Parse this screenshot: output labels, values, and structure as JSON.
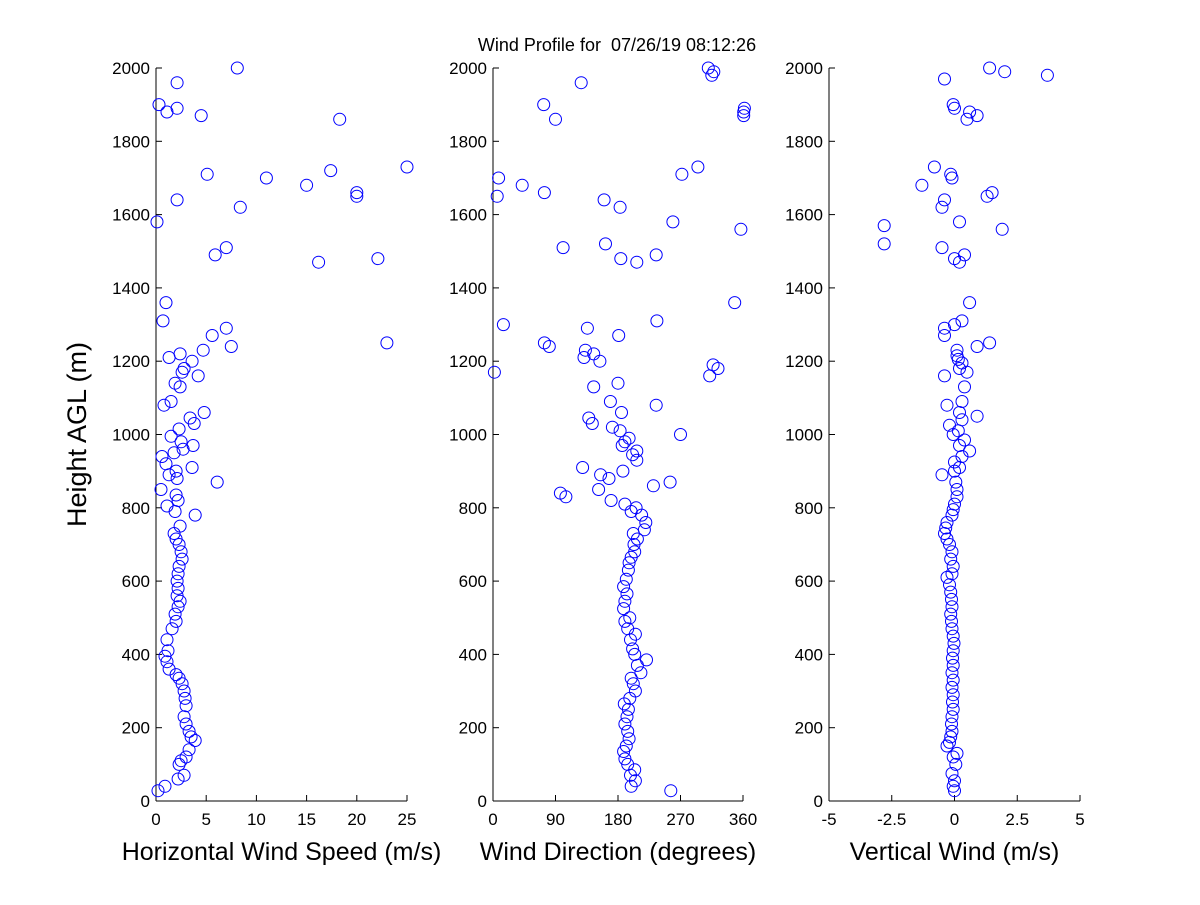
{
  "title": "Wind Profile for  07/26/19 08:12:26",
  "colors": {
    "marker": "#0000ff",
    "axis": "#000000",
    "background": "#ffffff"
  },
  "chart_data": [
    {
      "type": "scatter",
      "xlabel": "Horizontal Wind Speed (m/s)",
      "ylabel": "Height AGL (m)",
      "xlim": [
        0,
        25
      ],
      "ylim": [
        0,
        2000
      ],
      "xticks": [
        "0",
        "5",
        "10",
        "15",
        "20",
        "25"
      ],
      "yticks": [
        "0",
        "200",
        "400",
        "600",
        "800",
        "1000",
        "1200",
        "1400",
        "1600",
        "1800",
        "2000"
      ],
      "grid": false,
      "points": [
        [
          0.2,
          28
        ],
        [
          0.9,
          40
        ],
        [
          2.2,
          60
        ],
        [
          2.8,
          70
        ],
        [
          2.3,
          100
        ],
        [
          2.5,
          110
        ],
        [
          3.0,
          120
        ],
        [
          3.3,
          140
        ],
        [
          3.9,
          165
        ],
        [
          3.5,
          175
        ],
        [
          3.3,
          190
        ],
        [
          3.0,
          210
        ],
        [
          2.8,
          230
        ],
        [
          3.0,
          260
        ],
        [
          2.9,
          280
        ],
        [
          2.8,
          300
        ],
        [
          2.6,
          320
        ],
        [
          2.3,
          335
        ],
        [
          2.0,
          345
        ],
        [
          1.3,
          360
        ],
        [
          1.1,
          380
        ],
        [
          0.9,
          395
        ],
        [
          1.2,
          410
        ],
        [
          1.1,
          440
        ],
        [
          1.6,
          470
        ],
        [
          2.0,
          490
        ],
        [
          1.9,
          510
        ],
        [
          2.2,
          530
        ],
        [
          2.4,
          545
        ],
        [
          2.1,
          560
        ],
        [
          2.2,
          580
        ],
        [
          2.1,
          600
        ],
        [
          2.2,
          620
        ],
        [
          2.3,
          640
        ],
        [
          2.6,
          660
        ],
        [
          2.5,
          680
        ],
        [
          2.3,
          700
        ],
        [
          2.0,
          715
        ],
        [
          1.8,
          730
        ],
        [
          2.4,
          750
        ],
        [
          3.9,
          780
        ],
        [
          1.9,
          790
        ],
        [
          1.1,
          805
        ],
        [
          2.2,
          820
        ],
        [
          2.0,
          835
        ],
        [
          0.5,
          850
        ],
        [
          6.1,
          870
        ],
        [
          2.1,
          880
        ],
        [
          1.3,
          890
        ],
        [
          2.0,
          900
        ],
        [
          3.6,
          910
        ],
        [
          1.0,
          920
        ],
        [
          0.6,
          940
        ],
        [
          1.8,
          950
        ],
        [
          2.7,
          960
        ],
        [
          3.7,
          970
        ],
        [
          2.5,
          980
        ],
        [
          1.5,
          995
        ],
        [
          2.3,
          1015
        ],
        [
          3.8,
          1030
        ],
        [
          3.4,
          1045
        ],
        [
          4.8,
          1060
        ],
        [
          0.8,
          1080
        ],
        [
          1.5,
          1090
        ],
        [
          2.4,
          1130
        ],
        [
          1.9,
          1140
        ],
        [
          4.2,
          1160
        ],
        [
          2.6,
          1170
        ],
        [
          2.8,
          1180
        ],
        [
          3.6,
          1200
        ],
        [
          1.3,
          1210
        ],
        [
          2.4,
          1220
        ],
        [
          4.7,
          1230
        ],
        [
          7.5,
          1240
        ],
        [
          23.0,
          1250
        ],
        [
          5.6,
          1270
        ],
        [
          7.0,
          1290
        ],
        [
          0.7,
          1310
        ],
        [
          1.0,
          1360
        ],
        [
          16.2,
          1470
        ],
        [
          22.1,
          1480
        ],
        [
          5.9,
          1490
        ],
        [
          7.0,
          1510
        ],
        [
          0.1,
          1580
        ],
        [
          8.4,
          1620
        ],
        [
          2.1,
          1640
        ],
        [
          20.0,
          1650
        ],
        [
          20.0,
          1660
        ],
        [
          15.0,
          1680
        ],
        [
          11.0,
          1700
        ],
        [
          5.1,
          1710
        ],
        [
          17.4,
          1720
        ],
        [
          25.0,
          1730
        ],
        [
          18.3,
          1860
        ],
        [
          4.5,
          1870
        ],
        [
          1.1,
          1880
        ],
        [
          2.1,
          1890
        ],
        [
          0.3,
          1900
        ],
        [
          2.1,
          1960
        ],
        [
          8.1,
          2000
        ]
      ]
    },
    {
      "type": "scatter",
      "xlabel": "Wind Direction (degrees)",
      "ylabel": "",
      "xlim": [
        0,
        360
      ],
      "ylim": [
        0,
        2000
      ],
      "xticks": [
        "0",
        "90",
        "180",
        "270",
        "360"
      ],
      "yticks": [
        "0",
        "200",
        "400",
        "600",
        "800",
        "1000",
        "1200",
        "1400",
        "1600",
        "1800",
        "2000"
      ],
      "grid": false,
      "points": [
        [
          256,
          28
        ],
        [
          199,
          40
        ],
        [
          205,
          55
        ],
        [
          198,
          70
        ],
        [
          204,
          85
        ],
        [
          194,
          100
        ],
        [
          190,
          115
        ],
        [
          188,
          135
        ],
        [
          192,
          150
        ],
        [
          196,
          170
        ],
        [
          194,
          190
        ],
        [
          190,
          210
        ],
        [
          193,
          230
        ],
        [
          195,
          250
        ],
        [
          189,
          265
        ],
        [
          197,
          280
        ],
        [
          205,
          300
        ],
        [
          202,
          320
        ],
        [
          199,
          335
        ],
        [
          213,
          350
        ],
        [
          208,
          370
        ],
        [
          221,
          385
        ],
        [
          204,
          400
        ],
        [
          201,
          415
        ],
        [
          198,
          440
        ],
        [
          205,
          455
        ],
        [
          194,
          470
        ],
        [
          190,
          490
        ],
        [
          197,
          500
        ],
        [
          188,
          525
        ],
        [
          190,
          545
        ],
        [
          193,
          565
        ],
        [
          188,
          585
        ],
        [
          192,
          605
        ],
        [
          195,
          630
        ],
        [
          196,
          650
        ],
        [
          199,
          665
        ],
        [
          204,
          680
        ],
        [
          203,
          700
        ],
        [
          208,
          715
        ],
        [
          202,
          730
        ],
        [
          218,
          740
        ],
        [
          220,
          760
        ],
        [
          214,
          780
        ],
        [
          199,
          790
        ],
        [
          206,
          800
        ],
        [
          190,
          810
        ],
        [
          170,
          820
        ],
        [
          105,
          830
        ],
        [
          97,
          840
        ],
        [
          152,
          850
        ],
        [
          231,
          860
        ],
        [
          255,
          870
        ],
        [
          167,
          880
        ],
        [
          155,
          890
        ],
        [
          187,
          900
        ],
        [
          129,
          910
        ],
        [
          207,
          930
        ],
        [
          201,
          945
        ],
        [
          207,
          955
        ],
        [
          186,
          970
        ],
        [
          190,
          980
        ],
        [
          196,
          990
        ],
        [
          270,
          1000
        ],
        [
          183,
          1010
        ],
        [
          172,
          1020
        ],
        [
          143,
          1030
        ],
        [
          138,
          1045
        ],
        [
          185,
          1060
        ],
        [
          235,
          1080
        ],
        [
          169,
          1090
        ],
        [
          180,
          1140
        ],
        [
          312,
          1160
        ],
        [
          145,
          1130
        ],
        [
          2,
          1170
        ],
        [
          324,
          1180
        ],
        [
          317,
          1190
        ],
        [
          154,
          1200
        ],
        [
          131,
          1210
        ],
        [
          145,
          1220
        ],
        [
          133,
          1230
        ],
        [
          81,
          1240
        ],
        [
          74,
          1250
        ],
        [
          181,
          1270
        ],
        [
          136,
          1290
        ],
        [
          15,
          1300
        ],
        [
          236,
          1310
        ],
        [
          348,
          1360
        ],
        [
          207,
          1470
        ],
        [
          184,
          1480
        ],
        [
          235,
          1490
        ],
        [
          101,
          1510
        ],
        [
          162,
          1520
        ],
        [
          357,
          1560
        ],
        [
          259,
          1580
        ],
        [
          183,
          1620
        ],
        [
          160,
          1640
        ],
        [
          6,
          1650
        ],
        [
          74,
          1660
        ],
        [
          42,
          1680
        ],
        [
          8,
          1700
        ],
        [
          272,
          1710
        ],
        [
          295,
          1730
        ],
        [
          90,
          1860
        ],
        [
          361,
          1870
        ],
        [
          361,
          1880
        ],
        [
          362,
          1890
        ],
        [
          73,
          1900
        ],
        [
          127,
          1960
        ],
        [
          315,
          1980
        ],
        [
          318,
          1990
        ],
        [
          310,
          2000
        ]
      ]
    },
    {
      "type": "scatter",
      "xlabel": "Vertical Wind (m/s)",
      "ylabel": "",
      "xlim": [
        -5,
        5
      ],
      "ylim": [
        0,
        2000
      ],
      "xticks": [
        "-5",
        "-2.5",
        "0",
        "2.5",
        "5"
      ],
      "yticks": [
        "0",
        "200",
        "400",
        "600",
        "800",
        "1000",
        "1200",
        "1400",
        "1600",
        "1800",
        "2000"
      ],
      "grid": false,
      "points": [
        [
          0.0,
          28
        ],
        [
          -0.05,
          40
        ],
        [
          0.0,
          55
        ],
        [
          -0.1,
          75
        ],
        [
          0.05,
          100
        ],
        [
          -0.05,
          120
        ],
        [
          0.1,
          130
        ],
        [
          -0.3,
          150
        ],
        [
          -0.2,
          160
        ],
        [
          -0.15,
          175
        ],
        [
          -0.1,
          190
        ],
        [
          -0.12,
          210
        ],
        [
          -0.1,
          230
        ],
        [
          -0.05,
          250
        ],
        [
          -0.08,
          270
        ],
        [
          -0.05,
          290
        ],
        [
          -0.1,
          310
        ],
        [
          -0.05,
          330
        ],
        [
          -0.1,
          350
        ],
        [
          -0.05,
          370
        ],
        [
          -0.08,
          390
        ],
        [
          -0.05,
          410
        ],
        [
          -0.02,
          430
        ],
        [
          -0.05,
          450
        ],
        [
          -0.1,
          470
        ],
        [
          -0.12,
          490
        ],
        [
          -0.15,
          510
        ],
        [
          -0.1,
          530
        ],
        [
          -0.12,
          550
        ],
        [
          -0.15,
          570
        ],
        [
          -0.2,
          590
        ],
        [
          -0.3,
          610
        ],
        [
          -0.1,
          620
        ],
        [
          -0.05,
          640
        ],
        [
          -0.15,
          660
        ],
        [
          -0.1,
          680
        ],
        [
          -0.2,
          700
        ],
        [
          -0.3,
          715
        ],
        [
          -0.4,
          730
        ],
        [
          -0.35,
          745
        ],
        [
          -0.3,
          760
        ],
        [
          -0.1,
          780
        ],
        [
          -0.05,
          795
        ],
        [
          0.0,
          810
        ],
        [
          0.1,
          830
        ],
        [
          0.1,
          850
        ],
        [
          0.05,
          870
        ],
        [
          -0.5,
          890
        ],
        [
          0.0,
          900
        ],
        [
          0.2,
          910
        ],
        [
          0.0,
          925
        ],
        [
          0.3,
          940
        ],
        [
          0.6,
          955
        ],
        [
          0.2,
          970
        ],
        [
          0.4,
          985
        ],
        [
          -0.05,
          1000
        ],
        [
          0.15,
          1010
        ],
        [
          -0.2,
          1025
        ],
        [
          0.3,
          1040
        ],
        [
          0.9,
          1050
        ],
        [
          0.2,
          1060
        ],
        [
          -0.3,
          1080
        ],
        [
          0.3,
          1090
        ],
        [
          0.4,
          1130
        ],
        [
          -0.4,
          1160
        ],
        [
          0.5,
          1170
        ],
        [
          0.2,
          1180
        ],
        [
          0.3,
          1195
        ],
        [
          0.15,
          1205
        ],
        [
          0.1,
          1215
        ],
        [
          0.1,
          1230
        ],
        [
          0.9,
          1240
        ],
        [
          1.4,
          1250
        ],
        [
          -0.4,
          1270
        ],
        [
          -0.4,
          1290
        ],
        [
          0.0,
          1300
        ],
        [
          0.3,
          1310
        ],
        [
          0.6,
          1360
        ],
        [
          0.2,
          1470
        ],
        [
          0.0,
          1480
        ],
        [
          0.4,
          1490
        ],
        [
          -0.5,
          1510
        ],
        [
          -2.8,
          1520
        ],
        [
          1.9,
          1560
        ],
        [
          -2.8,
          1570
        ],
        [
          0.2,
          1580
        ],
        [
          -0.5,
          1620
        ],
        [
          -0.4,
          1640
        ],
        [
          1.3,
          1650
        ],
        [
          1.5,
          1660
        ],
        [
          -1.3,
          1680
        ],
        [
          -0.1,
          1700
        ],
        [
          -0.15,
          1710
        ],
        [
          -0.8,
          1730
        ],
        [
          0.5,
          1860
        ],
        [
          0.9,
          1870
        ],
        [
          0.6,
          1880
        ],
        [
          0.0,
          1890
        ],
        [
          -0.05,
          1900
        ],
        [
          -0.4,
          1970
        ],
        [
          3.7,
          1980
        ],
        [
          2.0,
          1990
        ],
        [
          1.4,
          2000
        ]
      ]
    }
  ]
}
